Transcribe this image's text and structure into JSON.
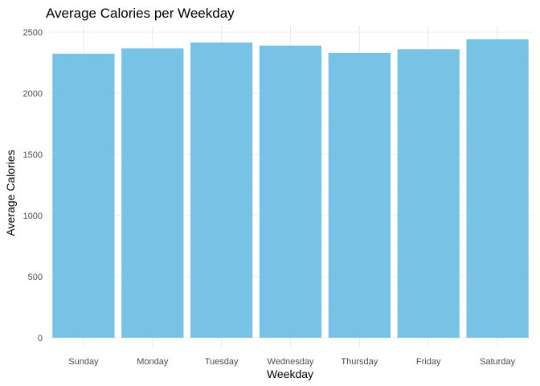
{
  "chart_data": {
    "type": "bar",
    "title": "Average Calories per Weekday",
    "xlabel": "Weekday",
    "ylabel": "Average Calories",
    "categories": [
      "Sunday",
      "Monday",
      "Tuesday",
      "Wednesday",
      "Thursday",
      "Friday",
      "Saturday"
    ],
    "values": [
      2324,
      2367,
      2416,
      2390,
      2330,
      2360,
      2442
    ],
    "ylim": [
      0,
      2600
    ],
    "yticks": [
      0,
      500,
      1000,
      1500,
      2000,
      2500
    ],
    "ytick_labels": [
      "0",
      "500",
      "1000",
      "1500",
      "2000",
      "2500"
    ],
    "grid": true,
    "bar_color": "#78c2e5"
  }
}
